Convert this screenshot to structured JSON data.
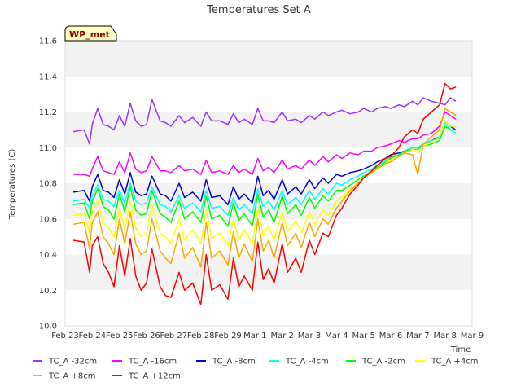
{
  "chart_data": {
    "type": "line",
    "title": "Temperatures Set A",
    "xlabel": "Time",
    "ylabel": "Temperatures (C)",
    "badge": "WP_met",
    "ylim": [
      10.0,
      11.6
    ],
    "yticks": [
      "10.0",
      "10.2",
      "10.4",
      "10.6",
      "10.8",
      "11.0",
      "11.2",
      "11.4",
      "11.6"
    ],
    "xticks": [
      "Feb 23",
      "Feb 24",
      "Feb 25",
      "Feb 26",
      "Feb 27",
      "Feb 28",
      "Feb 29",
      "Mar 1",
      "Mar 2",
      "Mar 3",
      "Mar 4",
      "Mar 5",
      "Mar 6",
      "Mar 7",
      "Mar 8",
      "Mar 9"
    ],
    "x_day_range": [
      0,
      15
    ],
    "grid": "horizontal bands",
    "legend_position": "bottom",
    "series": [
      {
        "name": "TC_A -32cm",
        "color": "#9b30ff",
        "x": [
          0.3,
          0.7,
          0.9,
          1.0,
          1.2,
          1.4,
          1.6,
          1.8,
          2.0,
          2.2,
          2.4,
          2.6,
          2.8,
          3.0,
          3.2,
          3.5,
          3.7,
          3.9,
          4.2,
          4.4,
          4.7,
          5.0,
          5.2,
          5.4,
          5.7,
          6.0,
          6.2,
          6.4,
          6.6,
          6.9,
          7.1,
          7.3,
          7.5,
          7.7,
          8.0,
          8.2,
          8.5,
          8.7,
          9.0,
          9.2,
          9.5,
          9.7,
          10.0,
          10.2,
          10.5,
          10.8,
          11.0,
          11.3,
          11.5,
          11.8,
          12.0,
          12.3,
          12.5,
          12.8,
          13.0,
          13.2,
          13.5,
          13.8,
          14.0,
          14.2,
          14.4
        ],
        "y": [
          11.09,
          11.1,
          11.02,
          11.13,
          11.22,
          11.13,
          11.12,
          11.1,
          11.18,
          11.12,
          11.25,
          11.15,
          11.12,
          11.13,
          11.27,
          11.15,
          11.14,
          11.12,
          11.18,
          11.14,
          11.17,
          11.12,
          11.2,
          11.15,
          11.15,
          11.13,
          11.19,
          11.14,
          11.16,
          11.13,
          11.22,
          11.15,
          11.15,
          11.14,
          11.2,
          11.15,
          11.16,
          11.14,
          11.18,
          11.16,
          11.2,
          11.18,
          11.2,
          11.21,
          11.19,
          11.2,
          11.22,
          11.2,
          11.22,
          11.23,
          11.22,
          11.24,
          11.23,
          11.26,
          11.24,
          11.28,
          11.26,
          11.25,
          11.24,
          11.28,
          11.26
        ]
      },
      {
        "name": "TC_A -16cm",
        "color": "#ff00ff",
        "x": [
          0.3,
          0.7,
          0.9,
          1.0,
          1.2,
          1.4,
          1.6,
          1.8,
          2.0,
          2.2,
          2.4,
          2.6,
          2.8,
          3.0,
          3.2,
          3.5,
          3.7,
          3.9,
          4.2,
          4.4,
          4.7,
          5.0,
          5.2,
          5.4,
          5.7,
          6.0,
          6.2,
          6.4,
          6.6,
          6.9,
          7.1,
          7.3,
          7.5,
          7.7,
          8.0,
          8.2,
          8.5,
          8.7,
          9.0,
          9.2,
          9.5,
          9.7,
          10.0,
          10.2,
          10.5,
          10.8,
          11.0,
          11.3,
          11.5,
          11.8,
          12.0,
          12.3,
          12.5,
          12.8,
          13.0,
          13.2,
          13.5,
          13.8,
          14.0,
          14.2,
          14.4
        ],
        "y": [
          10.85,
          10.85,
          10.84,
          10.88,
          10.95,
          10.87,
          10.86,
          10.85,
          10.92,
          10.86,
          10.97,
          10.88,
          10.86,
          10.87,
          10.95,
          10.87,
          10.87,
          10.86,
          10.9,
          10.87,
          10.88,
          10.85,
          10.93,
          10.86,
          10.87,
          10.85,
          10.9,
          10.86,
          10.88,
          10.85,
          10.94,
          10.87,
          10.89,
          10.86,
          10.93,
          10.88,
          10.9,
          10.88,
          10.93,
          10.9,
          10.95,
          10.92,
          10.96,
          10.94,
          10.97,
          10.96,
          10.98,
          10.98,
          11.0,
          11.01,
          11.02,
          11.04,
          11.03,
          11.05,
          11.05,
          11.07,
          11.08,
          11.12,
          11.2,
          11.18,
          11.16
        ]
      },
      {
        "name": "TC_A -8cm",
        "color": "#0000cd",
        "x": [
          0.3,
          0.7,
          0.9,
          1.0,
          1.2,
          1.4,
          1.6,
          1.8,
          2.0,
          2.2,
          2.4,
          2.6,
          2.8,
          3.0,
          3.2,
          3.5,
          3.7,
          3.9,
          4.2,
          4.4,
          4.7,
          5.0,
          5.2,
          5.4,
          5.7,
          6.0,
          6.2,
          6.4,
          6.6,
          6.9,
          7.1,
          7.3,
          7.5,
          7.7,
          8.0,
          8.2,
          8.5,
          8.7,
          9.0,
          9.2,
          9.5,
          9.7,
          10.0,
          10.2,
          10.5,
          10.8,
          11.0,
          11.3,
          11.5,
          11.8,
          12.0,
          12.3,
          12.5,
          12.8,
          13.0,
          13.2,
          13.5,
          13.8,
          14.0,
          14.2,
          14.4
        ],
        "y": [
          10.75,
          10.76,
          10.7,
          10.78,
          10.85,
          10.76,
          10.75,
          10.72,
          10.82,
          10.74,
          10.86,
          10.75,
          10.73,
          10.74,
          10.84,
          10.74,
          10.73,
          10.7,
          10.8,
          10.72,
          10.75,
          10.7,
          10.82,
          10.72,
          10.73,
          10.68,
          10.78,
          10.71,
          10.74,
          10.69,
          10.84,
          10.73,
          10.76,
          10.71,
          10.82,
          10.74,
          10.78,
          10.74,
          10.82,
          10.77,
          10.83,
          10.8,
          10.85,
          10.84,
          10.86,
          10.87,
          10.88,
          10.9,
          10.92,
          10.94,
          10.96,
          10.97,
          10.98,
          11.0,
          11.0,
          11.02,
          11.04,
          11.06,
          11.15,
          11.12,
          11.1
        ]
      },
      {
        "name": "TC_A -4cm",
        "color": "#00ffff",
        "x": [
          0.3,
          0.7,
          0.9,
          1.0,
          1.2,
          1.4,
          1.6,
          1.8,
          2.0,
          2.2,
          2.4,
          2.6,
          2.8,
          3.0,
          3.2,
          3.5,
          3.7,
          3.9,
          4.2,
          4.4,
          4.7,
          5.0,
          5.2,
          5.4,
          5.7,
          6.0,
          6.2,
          6.4,
          6.6,
          6.9,
          7.1,
          7.3,
          7.5,
          7.7,
          8.0,
          8.2,
          8.5,
          8.7,
          9.0,
          9.2,
          9.5,
          9.7,
          10.0,
          10.2,
          10.5,
          10.8,
          11.0,
          11.3,
          11.5,
          11.8,
          12.0,
          12.3,
          12.5,
          12.8,
          13.0,
          13.2,
          13.5,
          13.8,
          14.0,
          14.2,
          14.4
        ],
        "y": [
          10.7,
          10.71,
          10.66,
          10.73,
          10.79,
          10.71,
          10.7,
          10.67,
          10.76,
          10.69,
          10.8,
          10.7,
          10.68,
          10.69,
          10.78,
          10.68,
          10.67,
          10.64,
          10.73,
          10.66,
          10.69,
          10.64,
          10.76,
          10.66,
          10.67,
          10.62,
          10.72,
          10.65,
          10.68,
          10.63,
          10.77,
          10.67,
          10.7,
          10.65,
          10.76,
          10.68,
          10.72,
          10.68,
          10.76,
          10.71,
          10.77,
          10.74,
          10.8,
          10.79,
          10.82,
          10.84,
          10.86,
          10.88,
          10.9,
          10.93,
          10.95,
          10.96,
          10.98,
          11.0,
          11.0,
          11.02,
          11.04,
          11.05,
          11.14,
          11.1,
          11.08
        ]
      },
      {
        "name": "TC_A -2cm",
        "color": "#00ff00",
        "x": [
          0.3,
          0.7,
          0.9,
          1.0,
          1.2,
          1.4,
          1.6,
          1.8,
          2.0,
          2.2,
          2.4,
          2.6,
          2.8,
          3.0,
          3.2,
          3.5,
          3.7,
          3.9,
          4.2,
          4.4,
          4.7,
          5.0,
          5.2,
          5.4,
          5.7,
          6.0,
          6.2,
          6.4,
          6.6,
          6.9,
          7.1,
          7.3,
          7.5,
          7.7,
          8.0,
          8.2,
          8.5,
          8.7,
          9.0,
          9.2,
          9.5,
          9.7,
          10.0,
          10.2,
          10.5,
          10.8,
          11.0,
          11.3,
          11.5,
          11.8,
          12.0,
          12.3,
          12.5,
          12.8,
          13.0,
          13.2,
          13.5,
          13.8,
          14.0,
          14.2,
          14.4
        ],
        "y": [
          10.68,
          10.69,
          10.6,
          10.7,
          10.77,
          10.67,
          10.65,
          10.6,
          10.74,
          10.64,
          10.78,
          10.65,
          10.62,
          10.63,
          10.76,
          10.63,
          10.61,
          10.58,
          10.7,
          10.6,
          10.64,
          10.58,
          10.73,
          10.6,
          10.62,
          10.56,
          10.69,
          10.59,
          10.63,
          10.56,
          10.74,
          10.61,
          10.65,
          10.58,
          10.73,
          10.63,
          10.68,
          10.62,
          10.72,
          10.66,
          10.73,
          10.7,
          10.76,
          10.76,
          10.79,
          10.82,
          10.84,
          10.87,
          10.89,
          10.92,
          10.94,
          10.96,
          10.98,
          10.99,
          10.99,
          11.01,
          11.02,
          11.04,
          11.12,
          11.1,
          11.1
        ]
      },
      {
        "name": "TC_A +4cm",
        "color": "#ffff00",
        "x": [
          0.3,
          0.7,
          0.9,
          1.0,
          1.2,
          1.4,
          1.6,
          1.8,
          2.0,
          2.2,
          2.4,
          2.6,
          2.8,
          3.0,
          3.2,
          3.5,
          3.7,
          3.9,
          4.2,
          4.4,
          4.7,
          5.0,
          5.2,
          5.4,
          5.7,
          6.0,
          6.2,
          6.4,
          6.6,
          6.9,
          7.1,
          7.3,
          7.5,
          7.7,
          8.0,
          8.2,
          8.5,
          8.7,
          9.0,
          9.2,
          9.5,
          9.7,
          10.0,
          10.2,
          10.5,
          10.8,
          11.0,
          11.3,
          11.5,
          11.8,
          12.0,
          12.3,
          12.5,
          12.8,
          13.0,
          13.2,
          13.5,
          13.8,
          14.0,
          14.2,
          14.4
        ],
        "y": [
          10.62,
          10.63,
          10.52,
          10.64,
          10.7,
          10.58,
          10.55,
          10.5,
          10.66,
          10.54,
          10.7,
          10.55,
          10.5,
          10.52,
          10.68,
          10.52,
          10.5,
          10.46,
          10.6,
          10.48,
          10.54,
          10.46,
          10.65,
          10.49,
          10.52,
          10.45,
          10.6,
          10.48,
          10.54,
          10.46,
          10.66,
          10.51,
          10.56,
          10.48,
          10.64,
          10.53,
          10.59,
          10.52,
          10.64,
          10.57,
          10.65,
          10.62,
          10.7,
          10.72,
          10.77,
          10.8,
          10.83,
          10.86,
          10.88,
          10.91,
          10.93,
          10.95,
          10.97,
          10.99,
          10.97,
          11.01,
          11.03,
          11.06,
          11.15,
          11.12,
          11.12
        ]
      },
      {
        "name": "TC_A +8cm",
        "color": "#ffa500",
        "x": [
          0.3,
          0.7,
          0.9,
          1.0,
          1.2,
          1.4,
          1.6,
          1.8,
          2.0,
          2.2,
          2.4,
          2.6,
          2.8,
          3.0,
          3.2,
          3.5,
          3.7,
          3.9,
          4.2,
          4.4,
          4.7,
          5.0,
          5.2,
          5.4,
          5.7,
          6.0,
          6.2,
          6.4,
          6.6,
          6.9,
          7.1,
          7.3,
          7.5,
          7.7,
          8.0,
          8.2,
          8.5,
          8.7,
          9.0,
          9.2,
          9.5,
          9.7,
          10.0,
          10.2,
          10.5,
          10.8,
          11.0,
          11.3,
          11.5,
          11.8,
          12.0,
          12.3,
          12.5,
          12.8,
          13.0,
          13.2,
          13.5,
          13.8,
          14.0,
          14.2,
          14.4
        ],
        "y": [
          10.57,
          10.58,
          10.43,
          10.58,
          10.64,
          10.5,
          10.46,
          10.4,
          10.6,
          10.46,
          10.64,
          10.46,
          10.4,
          10.42,
          10.6,
          10.42,
          10.38,
          10.35,
          10.52,
          10.38,
          10.44,
          10.33,
          10.58,
          10.38,
          10.42,
          10.34,
          10.53,
          10.38,
          10.46,
          10.36,
          10.6,
          10.42,
          10.48,
          10.38,
          10.58,
          10.45,
          10.52,
          10.44,
          10.58,
          10.5,
          10.6,
          10.57,
          10.66,
          10.7,
          10.76,
          10.8,
          10.83,
          10.86,
          10.88,
          10.91,
          10.92,
          10.95,
          10.97,
          10.96,
          10.85,
          11.02,
          11.06,
          11.1,
          11.22,
          11.2,
          11.18
        ]
      },
      {
        "name": "TC_A +12cm",
        "color": "#ff0000",
        "x": [
          0.3,
          0.7,
          0.9,
          1.0,
          1.2,
          1.4,
          1.6,
          1.8,
          2.0,
          2.2,
          2.4,
          2.6,
          2.8,
          3.0,
          3.2,
          3.5,
          3.7,
          3.9,
          4.2,
          4.4,
          4.7,
          5.0,
          5.2,
          5.4,
          5.7,
          6.0,
          6.2,
          6.4,
          6.6,
          6.9,
          7.1,
          7.3,
          7.5,
          7.7,
          8.0,
          8.2,
          8.5,
          8.7,
          9.0,
          9.2,
          9.5,
          9.7,
          10.0,
          10.2,
          10.5,
          10.8,
          11.0,
          11.3,
          11.5,
          11.8,
          12.0,
          12.3,
          12.5,
          12.8,
          13.0,
          13.2,
          13.5,
          13.8,
          14.0,
          14.2,
          14.4
        ],
        "y": [
          10.48,
          10.47,
          10.3,
          10.45,
          10.5,
          10.35,
          10.3,
          10.22,
          10.45,
          10.28,
          10.49,
          10.28,
          10.2,
          10.24,
          10.43,
          10.22,
          10.17,
          10.16,
          10.3,
          10.2,
          10.24,
          10.12,
          10.4,
          10.2,
          10.23,
          10.15,
          10.38,
          10.22,
          10.28,
          10.2,
          10.47,
          10.26,
          10.32,
          10.24,
          10.46,
          10.3,
          10.38,
          10.3,
          10.48,
          10.4,
          10.52,
          10.5,
          10.62,
          10.66,
          10.74,
          10.79,
          10.83,
          10.87,
          10.9,
          10.94,
          10.95,
          11.0,
          11.06,
          11.1,
          11.08,
          11.16,
          11.2,
          11.24,
          11.36,
          11.33,
          11.34
        ]
      }
    ]
  }
}
